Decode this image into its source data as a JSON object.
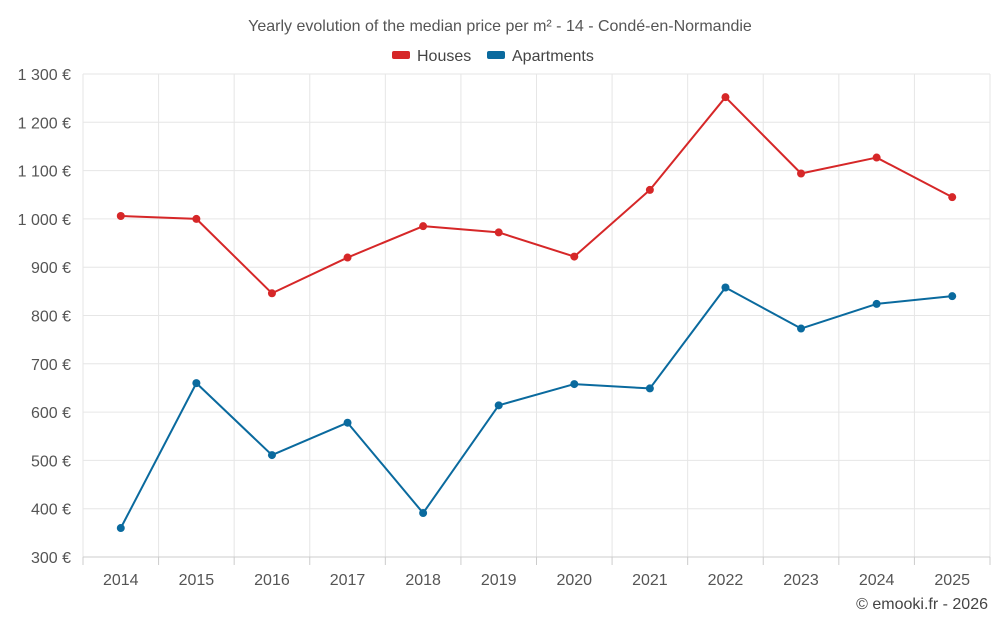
{
  "chart_data": {
    "type": "line",
    "title": "Yearly evolution of the median price per m² - 14 - Condé-en-Normandie",
    "categories": [
      "2014",
      "2015",
      "2016",
      "2017",
      "2018",
      "2019",
      "2020",
      "2021",
      "2022",
      "2023",
      "2024",
      "2025"
    ],
    "series": [
      {
        "name": "Houses",
        "color": "#d62728",
        "values": [
          1006,
          1000,
          846,
          920,
          985,
          972,
          922,
          1060,
          1252,
          1094,
          1127,
          1045
        ]
      },
      {
        "name": "Apartments",
        "color": "#0a6a9e",
        "values": [
          360,
          660,
          511,
          578,
          391,
          614,
          658,
          649,
          858,
          773,
          824,
          840
        ]
      }
    ],
    "ylim": [
      300,
      1300
    ],
    "yticks": [
      300,
      400,
      500,
      600,
      700,
      800,
      900,
      1000,
      1100,
      1200,
      1300
    ],
    "ytick_labels": [
      "300 €",
      "400 €",
      "500 €",
      "600 €",
      "700 €",
      "800 €",
      "900 €",
      "1 000 €",
      "1 100 €",
      "1 200 €",
      "1 300 €"
    ],
    "xlabel": "",
    "ylabel": "",
    "grid": true,
    "legend_position": "top-center"
  },
  "credit": "© emooki.fr - 2026"
}
